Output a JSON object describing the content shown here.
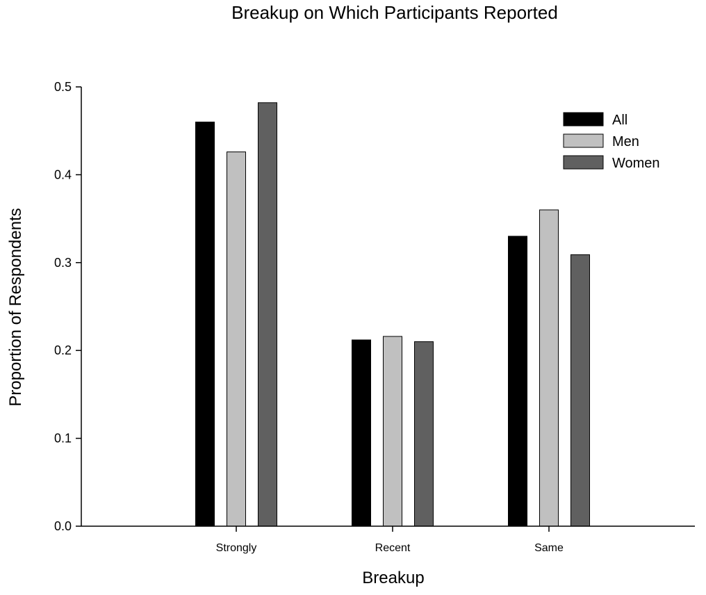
{
  "chart_data": {
    "type": "bar",
    "title": "Breakup on Which Participants Reported",
    "xlabel": "Breakup",
    "ylabel": "Proportion of Respondents",
    "categories": [
      "Strongly",
      "Recent",
      "Same"
    ],
    "series": [
      {
        "name": "All",
        "values": [
          0.46,
          0.212,
          0.33
        ],
        "color": "#000000"
      },
      {
        "name": "Men",
        "values": [
          0.426,
          0.216,
          0.36
        ],
        "color": "#c0c0c0"
      },
      {
        "name": "Women",
        "values": [
          0.482,
          0.21,
          0.309
        ],
        "color": "#606060"
      }
    ],
    "ylim": [
      0,
      0.5
    ],
    "yticks": [
      "0.0",
      "0.1",
      "0.2",
      "0.3",
      "0.4",
      "0.5"
    ],
    "grid": false,
    "legend_position": "top-right"
  }
}
